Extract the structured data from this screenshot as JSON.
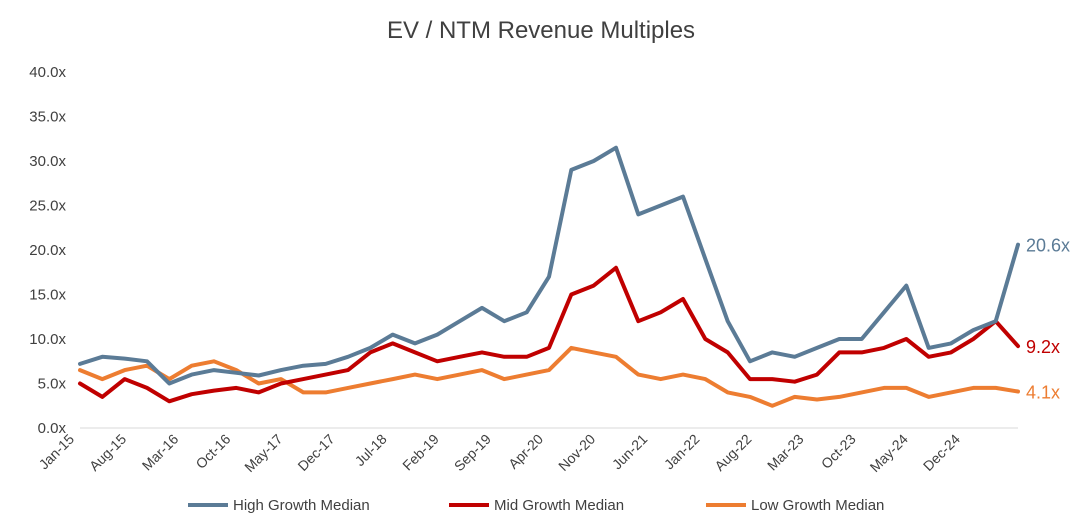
{
  "chart_data": {
    "type": "line",
    "title": "EV / NTM Revenue Multiples",
    "xlabel": "",
    "ylabel": "",
    "ylim": [
      0,
      40
    ],
    "y_ticks": [
      "0.0x",
      "5.0x",
      "10.0x",
      "15.0x",
      "20.0x",
      "25.0x",
      "30.0x",
      "35.0x",
      "40.0x"
    ],
    "x_ticks": [
      "Jan-15",
      "Aug-15",
      "Mar-16",
      "Oct-16",
      "May-17",
      "Dec-17",
      "Jul-18",
      "Feb-19",
      "Sep-19",
      "Apr-20",
      "Nov-20",
      "Jun-21",
      "Jan-22",
      "Aug-22",
      "Mar-23",
      "Oct-23",
      "May-24",
      "Dec-24"
    ],
    "x": [
      "Jan-15",
      "Apr-15",
      "Jul-15",
      "Oct-15",
      "Jan-16",
      "Apr-16",
      "Jul-16",
      "Oct-16",
      "Jan-17",
      "Apr-17",
      "Jul-17",
      "Oct-17",
      "Jan-18",
      "Apr-18",
      "Jul-18",
      "Oct-18",
      "Jan-19",
      "Apr-19",
      "Jul-19",
      "Oct-19",
      "Jan-20",
      "Apr-20",
      "Jul-20",
      "Oct-20",
      "Jan-21",
      "Apr-21",
      "Jul-21",
      "Oct-21",
      "Jan-22",
      "Apr-22",
      "Jul-22",
      "Oct-22",
      "Jan-23",
      "Apr-23",
      "Jul-23",
      "Oct-23",
      "Jan-24",
      "Apr-24",
      "Jul-24",
      "Oct-24",
      "Jan-25",
      "Apr-25",
      "Jul-25"
    ],
    "legend_position": "bottom",
    "series": [
      {
        "name": "High Growth Median",
        "color": "#5b7b96",
        "end_label": "20.6x",
        "values": [
          7.2,
          8.0,
          7.8,
          7.5,
          5.0,
          6.0,
          6.5,
          6.2,
          5.9,
          6.5,
          7.0,
          7.2,
          8.0,
          9.0,
          10.5,
          9.5,
          10.5,
          12.0,
          13.5,
          12.0,
          13.0,
          17.0,
          29.0,
          30.0,
          31.5,
          24.0,
          25.0,
          26.0,
          19.0,
          12.0,
          7.5,
          8.5,
          8.0,
          9.0,
          10.0,
          10.0,
          13.0,
          16.0,
          9.0,
          9.5,
          11.0,
          12.0,
          20.6
        ]
      },
      {
        "name": "Mid Growth Median",
        "color": "#c00000",
        "end_label": "9.2x",
        "values": [
          5.0,
          3.5,
          5.5,
          4.5,
          3.0,
          3.8,
          4.2,
          4.5,
          4.0,
          5.0,
          5.5,
          6.0,
          6.5,
          8.5,
          9.5,
          8.5,
          7.5,
          8.0,
          8.5,
          8.0,
          8.0,
          9.0,
          15.0,
          16.0,
          18.0,
          12.0,
          13.0,
          14.5,
          10.0,
          8.5,
          5.5,
          5.5,
          5.2,
          6.0,
          8.5,
          8.5,
          9.0,
          10.0,
          8.0,
          8.5,
          10.0,
          12.0,
          9.2
        ]
      },
      {
        "name": "Low Growth Median",
        "color": "#ed7d31",
        "end_label": "4.1x",
        "values": [
          6.5,
          5.5,
          6.5,
          7.0,
          5.5,
          7.0,
          7.5,
          6.5,
          5.0,
          5.5,
          4.0,
          4.0,
          4.5,
          5.0,
          5.5,
          6.0,
          5.5,
          6.0,
          6.5,
          5.5,
          6.0,
          6.5,
          9.0,
          8.5,
          8.0,
          6.0,
          5.5,
          6.0,
          5.5,
          4.0,
          3.5,
          2.5,
          3.5,
          3.2,
          3.5,
          4.0,
          4.5,
          4.5,
          3.5,
          4.0,
          4.5,
          4.5,
          4.1
        ]
      }
    ]
  }
}
